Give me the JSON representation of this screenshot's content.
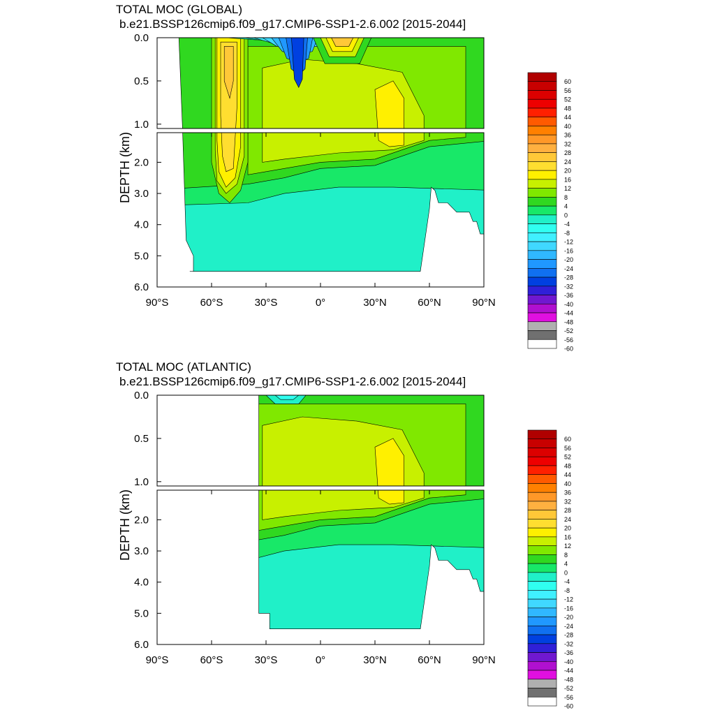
{
  "chart_data": [
    {
      "type": "heatmap",
      "title": "TOTAL MOC (GLOBAL)",
      "subtitle": "b.e21.BSSP126cmip6.f09_g17.CMIP6-SSP1-2.6.002 [2015-2044]",
      "ylabel": "DEPTH (km)",
      "xlabel": "",
      "x_ticks": [
        "90°S",
        "60°S",
        "30°S",
        "0°",
        "30°N",
        "60°N",
        "90°N"
      ],
      "x_range": [
        -90,
        90
      ],
      "y_ticks_upper": [
        "0.0",
        "0.5",
        "1.0"
      ],
      "y_ticks_lower": [
        "2.0",
        "3.0",
        "4.0",
        "5.0",
        "6.0"
      ],
      "y_range_km": [
        0,
        6
      ],
      "colorbar_labels": [
        "60",
        "56",
        "52",
        "48",
        "44",
        "40",
        "36",
        "32",
        "28",
        "24",
        "20",
        "16",
        "12",
        "8",
        "4",
        "0",
        "-4",
        "-8",
        "-12",
        "-16",
        "-20",
        "-24",
        "-28",
        "-32",
        "-36",
        "-40",
        "-44",
        "-48",
        "-52",
        "-56",
        "-60"
      ],
      "features": [
        {
          "lat": [
            -58,
            -42
          ],
          "depth_km": [
            0.0,
            3.2
          ],
          "value": 20,
          "desc": "southern overturning cell"
        },
        {
          "lat": [
            -20,
            -2
          ],
          "depth_km": [
            0.0,
            0.4
          ],
          "value": -40,
          "desc": "tropical cell minimum"
        },
        {
          "lat": [
            5,
            20
          ],
          "depth_km": [
            0.0,
            0.2
          ],
          "value": 28,
          "desc": "northern tropical cell"
        },
        {
          "lat": [
            -30,
            55
          ],
          "depth_km": [
            0.5,
            1.8
          ],
          "value": 16,
          "desc": "upper AMOC cell"
        },
        {
          "lat": [
            -20,
            60
          ],
          "depth_km": [
            3.0,
            5.5
          ],
          "value": -4,
          "desc": "abyssal cell"
        }
      ]
    },
    {
      "type": "heatmap",
      "title": "TOTAL MOC (ATLANTIC)",
      "subtitle": "b.e21.BSSP126cmip6.f09_g17.CMIP6-SSP1-2.6.002 [2015-2044]",
      "ylabel": "DEPTH (km)",
      "xlabel": "",
      "x_ticks": [
        "90°S",
        "60°S",
        "30°S",
        "0°",
        "30°N",
        "60°N",
        "90°N"
      ],
      "x_range": [
        -90,
        90
      ],
      "y_ticks_upper": [
        "0.0",
        "0.5",
        "1.0"
      ],
      "y_ticks_lower": [
        "2.0",
        "3.0",
        "4.0",
        "5.0",
        "6.0"
      ],
      "y_range_km": [
        0,
        6
      ],
      "colorbar_labels": [
        "60",
        "56",
        "52",
        "48",
        "44",
        "40",
        "36",
        "32",
        "28",
        "24",
        "20",
        "16",
        "12",
        "8",
        "4",
        "0",
        "-4",
        "-8",
        "-12",
        "-16",
        "-20",
        "-24",
        "-28",
        "-32",
        "-36",
        "-40",
        "-44",
        "-48",
        "-52",
        "-56",
        "-60"
      ],
      "features": [
        {
          "lat": [
            -32,
            55
          ],
          "depth_km": [
            0.3,
            1.8
          ],
          "value": 16,
          "desc": "upper AMOC cell"
        },
        {
          "lat": [
            30,
            45
          ],
          "depth_km": [
            0.5,
            1.4
          ],
          "value": 20,
          "desc": "AMOC maximum"
        },
        {
          "lat": [
            -25,
            -5
          ],
          "depth_km": [
            0.0,
            0.1
          ],
          "value": -4,
          "desc": "near-surface negative cell"
        },
        {
          "lat": [
            -32,
            55
          ],
          "depth_km": [
            3.0,
            5.5
          ],
          "value": -4,
          "desc": "abyssal cell"
        }
      ]
    }
  ],
  "colors": {
    "levels": [
      "#b00000",
      "#c80000",
      "#dc0000",
      "#ee0000",
      "#ff2000",
      "#ff5a00",
      "#ff8000",
      "#ff9828",
      "#ffb040",
      "#ffc838",
      "#ffde30",
      "#fff000",
      "#c8f000",
      "#80e800",
      "#30d820",
      "#18e868",
      "#20f0c8",
      "#30fff0",
      "#40f0ff",
      "#40d8ff",
      "#30b8ff",
      "#2098ff",
      "#1070f0",
      "#0040e0",
      "#3020d8",
      "#7018d0",
      "#b010d0",
      "#e010e0",
      "#b0b0b0",
      "#707070",
      "#ffffff"
    ]
  }
}
